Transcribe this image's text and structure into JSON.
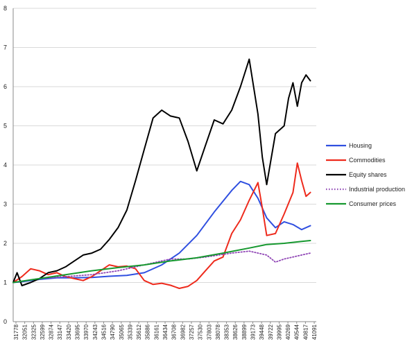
{
  "chart_data": {
    "type": "line",
    "title": "",
    "xlabel": "",
    "ylabel": "",
    "ylim": [
      0,
      8
    ],
    "yticks": [
      0,
      1,
      2,
      3,
      4,
      5,
      6,
      7,
      8
    ],
    "xlim": [
      31778,
      41275
    ],
    "xtick_labels": [
      "31778",
      "32051",
      "32325",
      "32599",
      "32874",
      "33147",
      "33420",
      "33695",
      "33970",
      "34243",
      "34516",
      "34790",
      "35065",
      "35339",
      "35612",
      "35886",
      "36161",
      "36434",
      "36708",
      "36982",
      "37257",
      "37530",
      "37803",
      "38078",
      "38353",
      "38626",
      "38899",
      "39173",
      "39448",
      "39722",
      "39995",
      "40269",
      "40544",
      "40817",
      "41091"
    ],
    "grid": true,
    "legend_position": "right",
    "series": [
      {
        "name": "Housing",
        "color": "#2f4fe0",
        "style": "solid",
        "points": [
          [
            31778,
            1.0
          ],
          [
            32051,
            1.02
          ],
          [
            32599,
            1.08
          ],
          [
            33147,
            1.12
          ],
          [
            33695,
            1.12
          ],
          [
            34243,
            1.13
          ],
          [
            34790,
            1.16
          ],
          [
            35339,
            1.18
          ],
          [
            35886,
            1.25
          ],
          [
            36434,
            1.45
          ],
          [
            36982,
            1.75
          ],
          [
            37530,
            2.2
          ],
          [
            38078,
            2.8
          ],
          [
            38626,
            3.35
          ],
          [
            38899,
            3.58
          ],
          [
            39173,
            3.5
          ],
          [
            39448,
            3.15
          ],
          [
            39722,
            2.65
          ],
          [
            39995,
            2.4
          ],
          [
            40269,
            2.55
          ],
          [
            40544,
            2.48
          ],
          [
            40817,
            2.35
          ],
          [
            41091,
            2.45
          ]
        ]
      },
      {
        "name": "Commodities",
        "color": "#ee2a1c",
        "style": "solid",
        "points": [
          [
            31778,
            1.0
          ],
          [
            32051,
            1.15
          ],
          [
            32325,
            1.35
          ],
          [
            32599,
            1.3
          ],
          [
            32874,
            1.2
          ],
          [
            33147,
            1.25
          ],
          [
            33420,
            1.15
          ],
          [
            33695,
            1.1
          ],
          [
            33970,
            1.05
          ],
          [
            34243,
            1.15
          ],
          [
            34516,
            1.3
          ],
          [
            34790,
            1.45
          ],
          [
            35065,
            1.4
          ],
          [
            35339,
            1.42
          ],
          [
            35612,
            1.35
          ],
          [
            35886,
            1.05
          ],
          [
            36161,
            0.95
          ],
          [
            36434,
            0.98
          ],
          [
            36708,
            0.93
          ],
          [
            36982,
            0.85
          ],
          [
            37257,
            0.9
          ],
          [
            37530,
            1.05
          ],
          [
            37803,
            1.3
          ],
          [
            38078,
            1.55
          ],
          [
            38353,
            1.65
          ],
          [
            38626,
            2.25
          ],
          [
            38899,
            2.6
          ],
          [
            39173,
            3.1
          ],
          [
            39448,
            3.55
          ],
          [
            39585,
            2.9
          ],
          [
            39722,
            2.2
          ],
          [
            39995,
            2.25
          ],
          [
            40269,
            2.75
          ],
          [
            40544,
            3.3
          ],
          [
            40681,
            4.05
          ],
          [
            40817,
            3.6
          ],
          [
            40954,
            3.2
          ],
          [
            41091,
            3.3
          ]
        ]
      },
      {
        "name": "Equity shares",
        "color": "#000000",
        "style": "solid",
        "points": [
          [
            31778,
            1.0
          ],
          [
            31900,
            1.25
          ],
          [
            32051,
            0.92
          ],
          [
            32325,
            1.0
          ],
          [
            32599,
            1.1
          ],
          [
            32874,
            1.25
          ],
          [
            33147,
            1.3
          ],
          [
            33420,
            1.4
          ],
          [
            33695,
            1.55
          ],
          [
            33970,
            1.7
          ],
          [
            34243,
            1.75
          ],
          [
            34516,
            1.85
          ],
          [
            34790,
            2.1
          ],
          [
            35065,
            2.4
          ],
          [
            35339,
            2.85
          ],
          [
            35612,
            3.6
          ],
          [
            35886,
            4.4
          ],
          [
            36161,
            5.2
          ],
          [
            36434,
            5.4
          ],
          [
            36708,
            5.25
          ],
          [
            36982,
            5.2
          ],
          [
            37257,
            4.6
          ],
          [
            37530,
            3.85
          ],
          [
            37803,
            4.5
          ],
          [
            38078,
            5.15
          ],
          [
            38353,
            5.05
          ],
          [
            38626,
            5.4
          ],
          [
            38899,
            6.0
          ],
          [
            39173,
            6.7
          ],
          [
            39448,
            5.3
          ],
          [
            39585,
            4.2
          ],
          [
            39722,
            3.5
          ],
          [
            39995,
            4.8
          ],
          [
            40269,
            5.0
          ],
          [
            40406,
            5.7
          ],
          [
            40544,
            6.1
          ],
          [
            40681,
            5.5
          ],
          [
            40817,
            6.1
          ],
          [
            40954,
            6.3
          ],
          [
            41091,
            6.15
          ]
        ]
      },
      {
        "name": "Industrial production",
        "color": "#8f45b5",
        "style": "dotted",
        "points": [
          [
            31778,
            1.0
          ],
          [
            32599,
            1.1
          ],
          [
            33420,
            1.15
          ],
          [
            34243,
            1.2
          ],
          [
            35065,
            1.3
          ],
          [
            35886,
            1.45
          ],
          [
            36708,
            1.6
          ],
          [
            37257,
            1.6
          ],
          [
            37803,
            1.65
          ],
          [
            38626,
            1.75
          ],
          [
            39173,
            1.8
          ],
          [
            39722,
            1.7
          ],
          [
            39995,
            1.52
          ],
          [
            40269,
            1.6
          ],
          [
            40817,
            1.7
          ],
          [
            41091,
            1.75
          ]
        ]
      },
      {
        "name": "Consumer prices",
        "color": "#16982f",
        "style": "solid",
        "points": [
          [
            31778,
            1.0
          ],
          [
            32599,
            1.1
          ],
          [
            33420,
            1.2
          ],
          [
            34243,
            1.3
          ],
          [
            35065,
            1.38
          ],
          [
            35886,
            1.45
          ],
          [
            36708,
            1.55
          ],
          [
            37530,
            1.63
          ],
          [
            38353,
            1.75
          ],
          [
            39173,
            1.88
          ],
          [
            39722,
            1.97
          ],
          [
            40269,
            2.0
          ],
          [
            40817,
            2.05
          ],
          [
            41091,
            2.07
          ]
        ]
      }
    ]
  }
}
